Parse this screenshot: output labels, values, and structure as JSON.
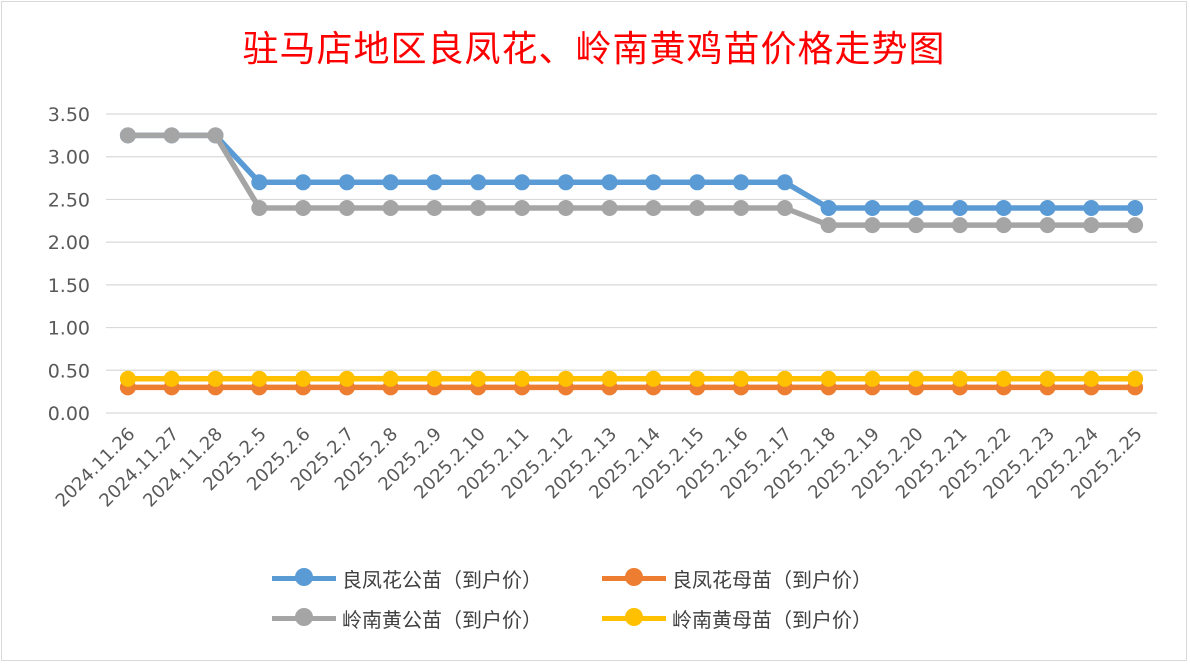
{
  "chart_data": {
    "type": "line",
    "title": "驻马店地区良凤花、岭南黄鸡苗价格走势图",
    "categories": [
      "2024.11.26",
      "2024.11.27",
      "2024.11.28",
      "2025.2.5",
      "2025.2.6",
      "2025.2.7",
      "2025.2.8",
      "2025.2.9",
      "2025.2.10",
      "2025.2.11",
      "2025.2.12",
      "2025.2.13",
      "2025.2.14",
      "2025.2.15",
      "2025.2.16",
      "2025.2.17",
      "2025.2.18",
      "2025.2.19",
      "2025.2.20",
      "2025.2.21",
      "2025.2.22",
      "2025.2.23",
      "2025.2.24",
      "2025.2.25"
    ],
    "y_ticks": [
      "0.00",
      "0.50",
      "1.00",
      "1.50",
      "2.00",
      "2.50",
      "3.00",
      "3.50"
    ],
    "ylim": [
      0,
      3.5
    ],
    "grid": true,
    "legend_position": "bottom",
    "series": [
      {
        "name": "良凤花公苗（到户价）",
        "color": "#5b9bd5",
        "values": [
          3.25,
          3.25,
          3.25,
          2.7,
          2.7,
          2.7,
          2.7,
          2.7,
          2.7,
          2.7,
          2.7,
          2.7,
          2.7,
          2.7,
          2.7,
          2.7,
          2.4,
          2.4,
          2.4,
          2.4,
          2.4,
          2.4,
          2.4,
          2.4
        ]
      },
      {
        "name": "良凤花母苗（到户价）",
        "color": "#ed7d31",
        "values": [
          0.3,
          0.3,
          0.3,
          0.3,
          0.3,
          0.3,
          0.3,
          0.3,
          0.3,
          0.3,
          0.3,
          0.3,
          0.3,
          0.3,
          0.3,
          0.3,
          0.3,
          0.3,
          0.3,
          0.3,
          0.3,
          0.3,
          0.3,
          0.3
        ]
      },
      {
        "name": "岭南黄公苗（到户价）",
        "color": "#a5a5a5",
        "values": [
          3.25,
          3.25,
          3.25,
          2.4,
          2.4,
          2.4,
          2.4,
          2.4,
          2.4,
          2.4,
          2.4,
          2.4,
          2.4,
          2.4,
          2.4,
          2.4,
          2.2,
          2.2,
          2.2,
          2.2,
          2.2,
          2.2,
          2.2,
          2.2
        ]
      },
      {
        "name": "岭南黄母苗（到户价）",
        "color": "#ffc000",
        "values": [
          0.4,
          0.4,
          0.4,
          0.4,
          0.4,
          0.4,
          0.4,
          0.4,
          0.4,
          0.4,
          0.4,
          0.4,
          0.4,
          0.4,
          0.4,
          0.4,
          0.4,
          0.4,
          0.4,
          0.4,
          0.4,
          0.4,
          0.4,
          0.4
        ]
      }
    ],
    "series_draw_order": [
      0,
      2,
      1,
      3
    ]
  }
}
